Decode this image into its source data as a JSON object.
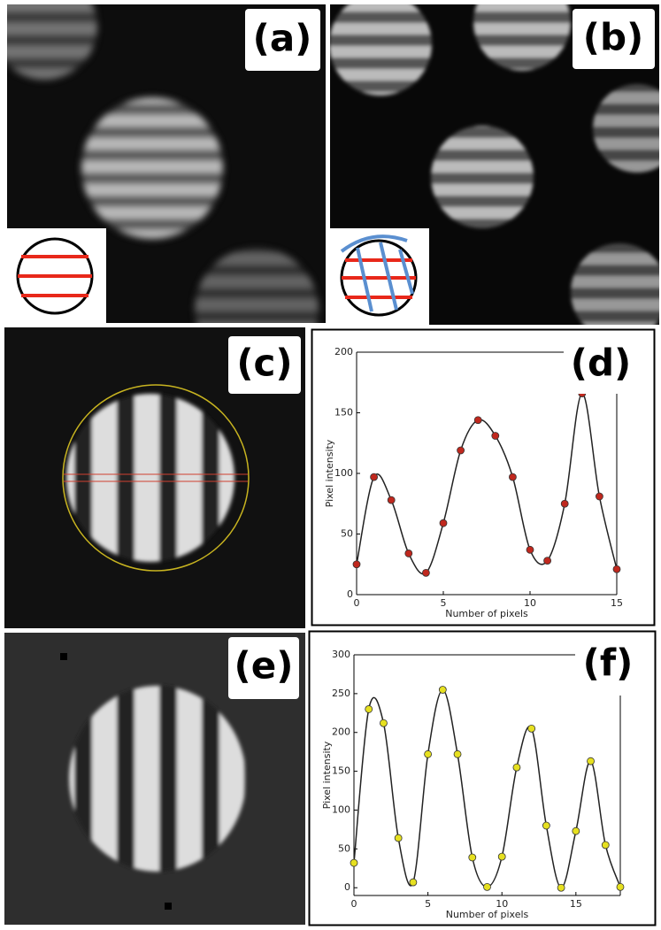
{
  "panel_labels": [
    "(a)",
    "(b)",
    "(c)",
    "(d)",
    "(e)",
    "(f)"
  ],
  "chart_data": [
    {
      "type": "line",
      "xlabel": "Number of pixels",
      "ylabel": "Pixel intensity",
      "x": [
        0,
        1,
        2,
        3,
        4,
        5,
        6,
        7,
        8,
        9,
        10,
        11,
        12,
        13,
        14,
        15
      ],
      "values": [
        25,
        97,
        78,
        34,
        18,
        59,
        119,
        144,
        131,
        97,
        37,
        28,
        75,
        166,
        81,
        21
      ],
      "color": "#c0281e",
      "line_color": "#222222",
      "xlim": [
        0,
        15
      ],
      "ylim": [
        0,
        200
      ],
      "xticks": [
        0,
        5,
        10,
        15
      ],
      "yticks": [
        0,
        50,
        100,
        150,
        200
      ]
    },
    {
      "type": "line",
      "xlabel": "Number of pixels",
      "ylabel": "Pixel intensity",
      "x": [
        0,
        1,
        2,
        3,
        4,
        5,
        6,
        7,
        8,
        9,
        10,
        11,
        12,
        13,
        14,
        15,
        16,
        17,
        18
      ],
      "values": [
        32,
        230,
        212,
        64,
        7,
        172,
        255,
        172,
        39,
        1,
        40,
        155,
        205,
        80,
        0,
        73,
        163,
        55,
        1
      ],
      "color": "#e6e020",
      "line_color": "#222222",
      "xlim": [
        0,
        18
      ],
      "ylim": [
        -10,
        300
      ],
      "xticks": [
        0,
        5,
        10,
        15
      ],
      "yticks": [
        0,
        50,
        100,
        150,
        200,
        250,
        300
      ]
    }
  ]
}
